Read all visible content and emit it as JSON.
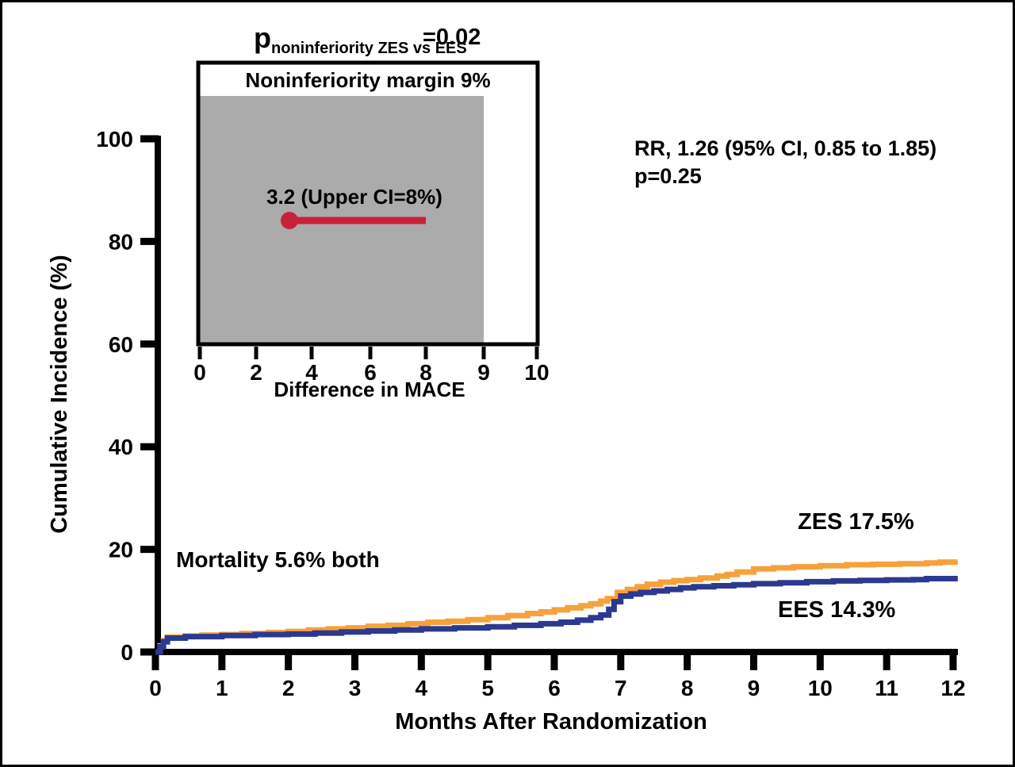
{
  "colors": {
    "zes_orange": "#F7A13B",
    "ees_blue": "#2B3990",
    "ci_red": "#C8213A",
    "margin_gray": "#ABABAB",
    "axis_black": "#000000",
    "background": "#FFFFFF"
  },
  "chart_data": [
    {
      "type": "line",
      "subtype": "step-cumulative-incidence",
      "title": "",
      "xlabel": "Months After Randomization",
      "ylabel": "Cumulative Incidence (%)",
      "xlim": [
        0,
        12
      ],
      "ylim": [
        0,
        100
      ],
      "xticks": [
        0,
        1,
        2,
        3,
        4,
        5,
        6,
        7,
        8,
        9,
        10,
        11,
        12
      ],
      "yticks": [
        0,
        20,
        40,
        60,
        80,
        100
      ],
      "grid": false,
      "series": [
        {
          "name": "ZES",
          "color_key": "zes_orange",
          "end_label": "ZES 17.5%",
          "final_value_pct": 17.5,
          "points": [
            [
              0,
              0
            ],
            [
              0.07,
              1.2
            ],
            [
              0.12,
              2.2
            ],
            [
              0.18,
              2.9
            ],
            [
              0.45,
              3.1
            ],
            [
              0.7,
              3.3
            ],
            [
              1.0,
              3.4
            ],
            [
              1.3,
              3.6
            ],
            [
              1.7,
              3.8
            ],
            [
              2.0,
              4.0
            ],
            [
              2.3,
              4.3
            ],
            [
              2.6,
              4.5
            ],
            [
              2.9,
              4.7
            ],
            [
              3.2,
              5.0
            ],
            [
              3.5,
              5.2
            ],
            [
              3.8,
              5.5
            ],
            [
              4.1,
              5.8
            ],
            [
              4.4,
              6.0
            ],
            [
              4.7,
              6.3
            ],
            [
              5.0,
              6.7
            ],
            [
              5.3,
              7.1
            ],
            [
              5.6,
              7.5
            ],
            [
              5.8,
              7.8
            ],
            [
              6.0,
              8.2
            ],
            [
              6.2,
              8.6
            ],
            [
              6.4,
              9.0
            ],
            [
              6.55,
              9.4
            ],
            [
              6.7,
              9.9
            ],
            [
              6.8,
              10.4
            ],
            [
              6.95,
              11.6
            ],
            [
              7.1,
              12.2
            ],
            [
              7.25,
              12.7
            ],
            [
              7.4,
              13.2
            ],
            [
              7.6,
              13.6
            ],
            [
              7.8,
              13.9
            ],
            [
              8.0,
              14.1
            ],
            [
              8.2,
              14.4
            ],
            [
              8.45,
              14.8
            ],
            [
              8.6,
              15.1
            ],
            [
              8.75,
              15.6
            ],
            [
              9.0,
              16.2
            ],
            [
              9.3,
              16.4
            ],
            [
              9.6,
              16.6
            ],
            [
              10.0,
              16.8
            ],
            [
              10.4,
              17.0
            ],
            [
              10.8,
              17.1
            ],
            [
              11.2,
              17.2
            ],
            [
              11.6,
              17.35
            ],
            [
              11.8,
              17.5
            ],
            [
              12.07,
              17.5
            ]
          ]
        },
        {
          "name": "EES",
          "color_key": "ees_blue",
          "end_label": "EES 14.3%",
          "final_value_pct": 14.3,
          "points": [
            [
              0,
              0
            ],
            [
              0.07,
              1.0
            ],
            [
              0.12,
              2.0
            ],
            [
              0.18,
              2.7
            ],
            [
              0.45,
              3.0
            ],
            [
              1.0,
              3.2
            ],
            [
              1.5,
              3.4
            ],
            [
              2.0,
              3.5
            ],
            [
              2.4,
              3.7
            ],
            [
              2.8,
              3.9
            ],
            [
              3.2,
              4.1
            ],
            [
              3.6,
              4.3
            ],
            [
              4.0,
              4.5
            ],
            [
              4.5,
              4.7
            ],
            [
              5.0,
              4.9
            ],
            [
              5.4,
              5.2
            ],
            [
              5.8,
              5.5
            ],
            [
              6.1,
              5.8
            ],
            [
              6.35,
              6.2
            ],
            [
              6.55,
              6.7
            ],
            [
              6.7,
              7.2
            ],
            [
              6.82,
              8.3
            ],
            [
              6.9,
              9.8
            ],
            [
              7.0,
              10.9
            ],
            [
              7.15,
              11.3
            ],
            [
              7.3,
              11.6
            ],
            [
              7.5,
              11.9
            ],
            [
              7.7,
              12.2
            ],
            [
              7.9,
              12.5
            ],
            [
              8.1,
              12.7
            ],
            [
              8.4,
              12.9
            ],
            [
              8.7,
              13.1
            ],
            [
              9.0,
              13.3
            ],
            [
              9.4,
              13.5
            ],
            [
              9.8,
              13.7
            ],
            [
              10.2,
              13.85
            ],
            [
              10.6,
              13.95
            ],
            [
              11.0,
              14.05
            ],
            [
              11.4,
              14.1
            ],
            [
              11.6,
              14.3
            ],
            [
              12.07,
              14.3
            ]
          ]
        }
      ],
      "annotations": {
        "mortality": "Mortality 5.6% both",
        "rr_line1": "RR, 1.26 (95% CI, 0.85 to 1.85)",
        "rr_line2": "p=0.25"
      }
    },
    {
      "type": "scatter",
      "subtype": "noninferiority-point-estimate",
      "title": "Noninferiority margin 9%",
      "xlabel": "Difference in MACE",
      "xticks": [
        0,
        2,
        4,
        6,
        8,
        9,
        10
      ],
      "xlim": [
        0,
        10
      ],
      "noninferiority_margin_pct": 9,
      "shaded_region": [
        0,
        9
      ],
      "point_estimate": 3.2,
      "upper_ci": 8,
      "point_label": "3.2 (Upper CI=8%)",
      "header": {
        "p_symbol": "p",
        "p_subscript": "noninferiority ZES vs EES",
        "p_value": "=0.02"
      }
    }
  ]
}
